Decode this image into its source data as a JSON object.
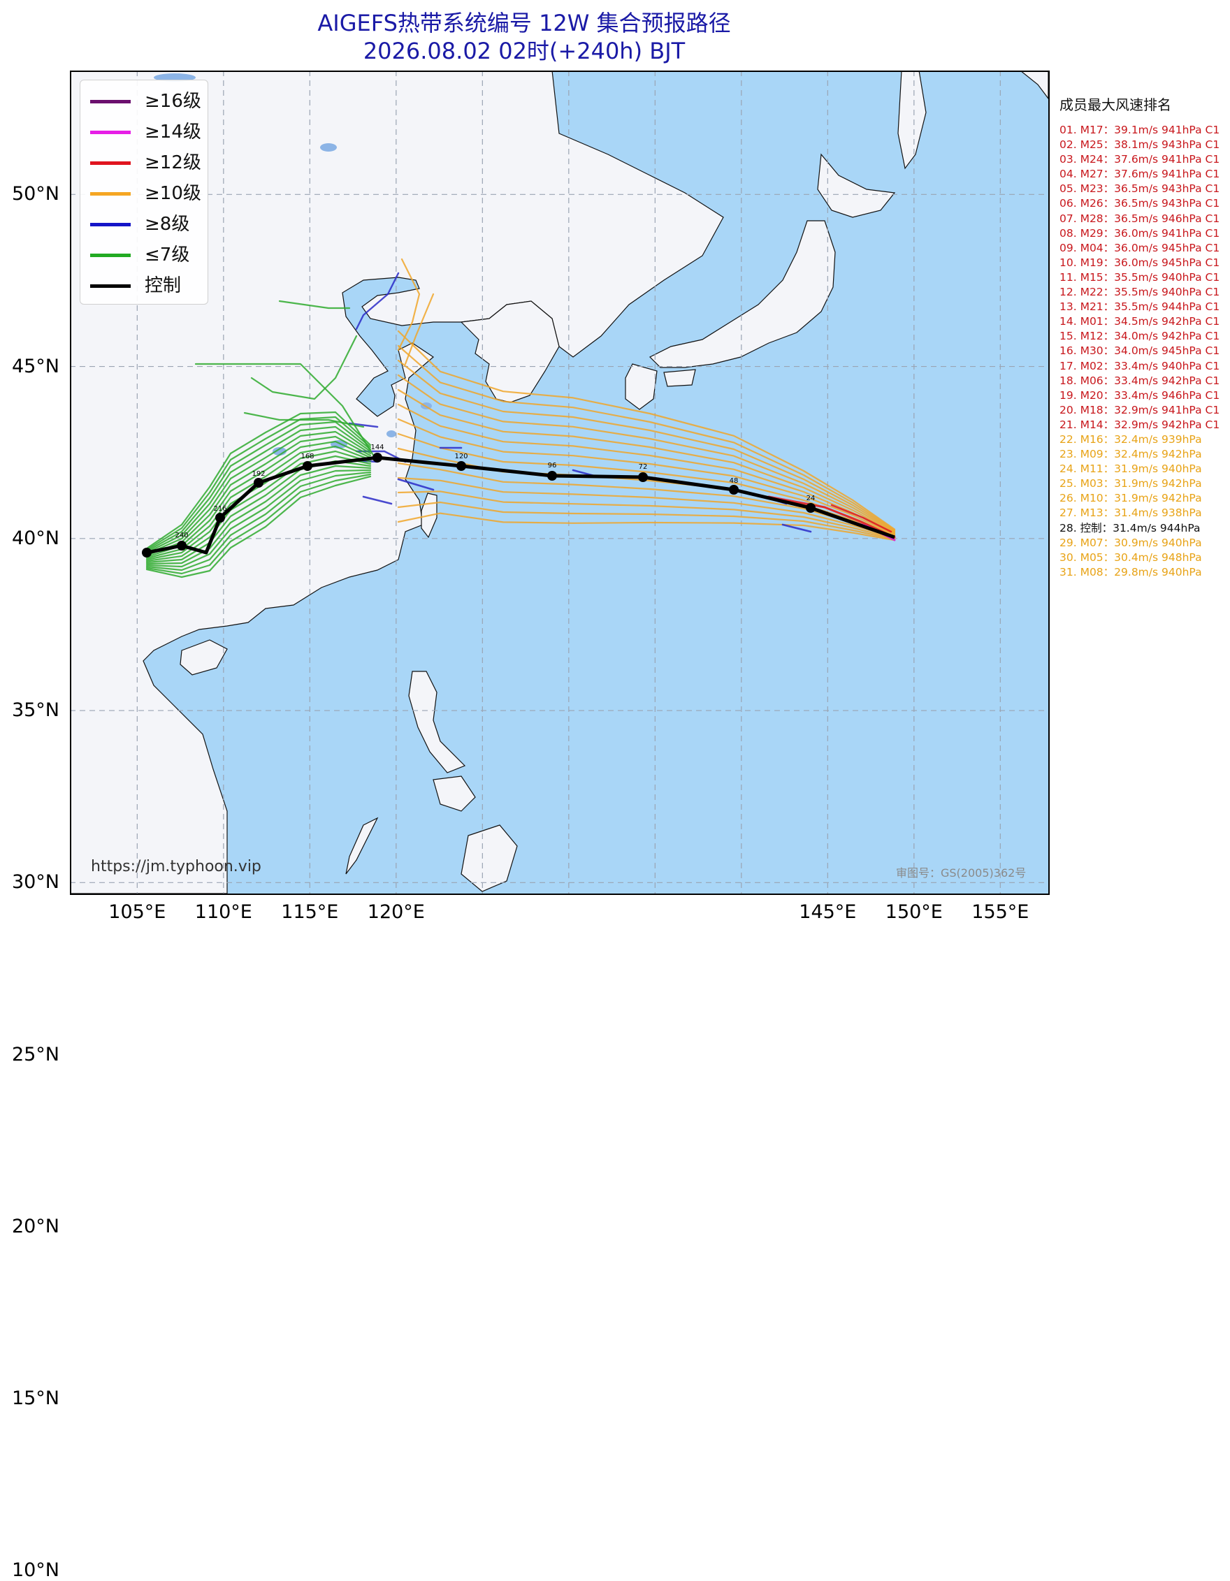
{
  "title": {
    "line1": "AIGEFS热带系统编号 12W 集合预报路径",
    "line2": "2026.08.02 02时(+240h) BJT"
  },
  "colors": {
    "ocean": "#a9d6f7",
    "land": "#f4f5f9",
    "title": "#1a1aa6",
    "ranking_red": "#c8171c",
    "ranking_orange": "#e8a317",
    "ranking_black": "#111111"
  },
  "axes": {
    "latitudes": [
      "50°N",
      "45°N",
      "40°N",
      "35°N",
      "30°N",
      "25°N",
      "20°N",
      "15°N",
      "10°N"
    ],
    "longitudes": [
      "105°E",
      "110°E",
      "115°E",
      "120°E",
      "145°E",
      "150°E",
      "155°E"
    ]
  },
  "legend": [
    {
      "label": "≥16级",
      "color": "#6b0f6e"
    },
    {
      "label": "≥14级",
      "color": "#e61ee6"
    },
    {
      "label": "≥12级",
      "color": "#e0141e"
    },
    {
      "label": "≥10级",
      "color": "#f5a623"
    },
    {
      "label": "≥8级",
      "color": "#1414c8"
    },
    {
      "label": "≤7级",
      "color": "#22aa22"
    },
    {
      "label": "控制",
      "color": "#000000"
    }
  ],
  "watermark": "https://jm.typhoon.vip",
  "approval": "审图号：GS(2005)362号",
  "ranking": {
    "title": "成员最大风速排名",
    "items": [
      {
        "text": "01. M17：39.1m/s 941hPa C1",
        "color": "#c8171c"
      },
      {
        "text": "02. M25：38.1m/s 943hPa C1",
        "color": "#c8171c"
      },
      {
        "text": "03. M24：37.6m/s 941hPa C1",
        "color": "#c8171c"
      },
      {
        "text": "04. M27：37.6m/s 941hPa C1",
        "color": "#c8171c"
      },
      {
        "text": "05. M23：36.5m/s 943hPa C1",
        "color": "#c8171c"
      },
      {
        "text": "06. M26：36.5m/s 943hPa C1",
        "color": "#c8171c"
      },
      {
        "text": "07. M28：36.5m/s 946hPa C1",
        "color": "#c8171c"
      },
      {
        "text": "08. M29：36.0m/s 941hPa C1",
        "color": "#c8171c"
      },
      {
        "text": "09. M04：36.0m/s 945hPa C1",
        "color": "#c8171c"
      },
      {
        "text": "10. M19：36.0m/s 945hPa C1",
        "color": "#c8171c"
      },
      {
        "text": "11. M15：35.5m/s 940hPa C1",
        "color": "#c8171c"
      },
      {
        "text": "12. M22：35.5m/s 940hPa C1",
        "color": "#c8171c"
      },
      {
        "text": "13. M21：35.5m/s 944hPa C1",
        "color": "#c8171c"
      },
      {
        "text": "14. M01：34.5m/s 942hPa C1",
        "color": "#c8171c"
      },
      {
        "text": "15. M12：34.0m/s 942hPa C1",
        "color": "#c8171c"
      },
      {
        "text": "16. M30：34.0m/s 945hPa C1",
        "color": "#c8171c"
      },
      {
        "text": "17. M02：33.4m/s 940hPa C1",
        "color": "#c8171c"
      },
      {
        "text": "18. M06：33.4m/s 942hPa C1",
        "color": "#c8171c"
      },
      {
        "text": "19. M20：33.4m/s 946hPa C1",
        "color": "#c8171c"
      },
      {
        "text": "20. M18：32.9m/s 941hPa C1",
        "color": "#c8171c"
      },
      {
        "text": "21. M14：32.9m/s 942hPa C1",
        "color": "#c8171c"
      },
      {
        "text": "22. M16：32.4m/s 939hPa",
        "color": "#e8a317"
      },
      {
        "text": "23. M09：32.4m/s 942hPa",
        "color": "#e8a317"
      },
      {
        "text": "24. M11：31.9m/s 940hPa",
        "color": "#e8a317"
      },
      {
        "text": "25. M03：31.9m/s 942hPa",
        "color": "#e8a317"
      },
      {
        "text": "26. M10：31.9m/s 942hPa",
        "color": "#e8a317"
      },
      {
        "text": "27. M13：31.4m/s 938hPa",
        "color": "#e8a317"
      },
      {
        "text": "28. 控制：31.4m/s 944hPa",
        "color": "#111111"
      },
      {
        "text": "29. M07：30.9m/s 940hPa",
        "color": "#e8a317"
      },
      {
        "text": "30. M05：30.4m/s 948hPa",
        "color": "#e8a317"
      },
      {
        "text": "31. M08：29.8m/s 940hPa",
        "color": "#e8a317"
      }
    ]
  },
  "control_track": {
    "hour_labels": [
      "24",
      "48",
      "72",
      "96",
      "120",
      "144",
      "168",
      "192",
      "216",
      "240"
    ]
  }
}
